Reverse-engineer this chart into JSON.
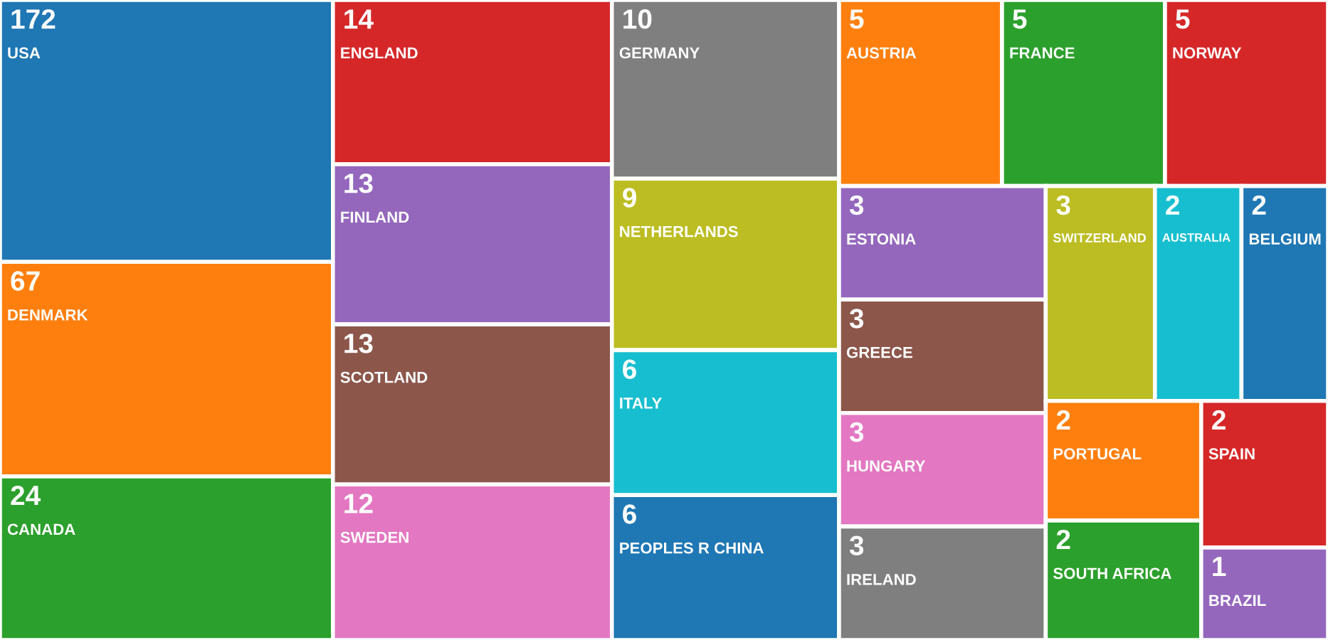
{
  "chart_data": {
    "type": "other",
    "data_labels": true,
    "categories": [
      "USA",
      "DENMARK",
      "CANADA",
      "ENGLAND",
      "FINLAND",
      "SCOTLAND",
      "SWEDEN",
      "GERMANY",
      "NETHERLANDS",
      "ITALY",
      "PEOPLES R CHINA",
      "AUSTRIA",
      "FRANCE",
      "NORWAY",
      "ESTONIA",
      "GREECE",
      "HUNGARY",
      "IRELAND",
      "SWITZERLAND",
      "AUSTRALIA",
      "BELGIUM",
      "PORTUGAL",
      "SOUTH AFRICA",
      "SPAIN",
      "BRAZIL"
    ],
    "values": [
      172,
      67,
      24,
      14,
      13,
      13,
      12,
      10,
      9,
      6,
      6,
      5,
      5,
      5,
      3,
      3,
      3,
      3,
      3,
      2,
      2,
      2,
      2,
      2,
      1
    ],
    "colors": [
      "#1f77b4",
      "#ff7f0e",
      "#2ca02c",
      "#d62728",
      "#9467bd",
      "#8c564b",
      "#e377c2",
      "#7f7f7f",
      "#bcbd22",
      "#17becf",
      "#1f77b4",
      "#ff7f0e",
      "#2ca02c",
      "#d62728",
      "#9467bd",
      "#8c564b",
      "#e377c2",
      "#7f7f7f",
      "#bcbd22",
      "#17becf",
      "#1f77b4",
      "#ff7f0e",
      "#2ca02c",
      "#d62728",
      "#9467bd"
    ]
  }
}
